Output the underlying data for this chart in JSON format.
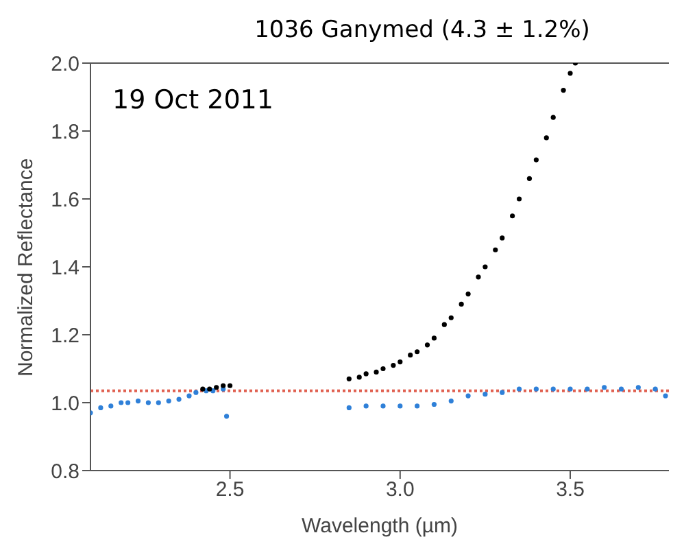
{
  "chart_data": {
    "type": "scatter",
    "title": "1036 Ganymed (4.3 ± 1.2%)",
    "xlabel": "Wavelength (µm)",
    "ylabel": "Normalized Reflectance",
    "annotations": [
      "19 Oct 2011"
    ],
    "series": [
      {
        "color": "#2f80d8",
        "x": [
          2.09,
          2.12,
          2.15,
          2.18,
          2.2,
          2.23,
          2.26,
          2.29,
          2.32,
          2.35,
          2.38,
          2.4,
          2.43,
          2.45,
          2.48,
          2.49,
          2.85,
          2.9,
          2.95,
          3.0,
          3.05,
          3.1,
          3.15,
          3.2,
          3.25,
          3.3,
          3.35,
          3.4,
          3.45,
          3.5,
          3.55,
          3.6,
          3.65,
          3.7,
          3.75,
          3.78
        ],
        "values": [
          0.97,
          0.985,
          0.99,
          1.0,
          1.0,
          1.005,
          1.0,
          1.0,
          1.005,
          1.01,
          1.02,
          1.03,
          1.035,
          1.035,
          1.04,
          0.96,
          0.985,
          0.99,
          0.99,
          0.99,
          0.99,
          0.995,
          1.005,
          1.02,
          1.025,
          1.03,
          1.04,
          1.04,
          1.04,
          1.04,
          1.04,
          1.045,
          1.04,
          1.045,
          1.04,
          1.02
        ]
      },
      {
        "color": "#000000",
        "x": [
          2.42,
          2.44,
          2.46,
          2.48,
          2.5,
          2.85,
          2.88,
          2.9,
          2.93,
          2.95,
          2.98,
          3.0,
          3.03,
          3.05,
          3.08,
          3.1,
          3.13,
          3.15,
          3.18,
          3.2,
          3.23,
          3.25,
          3.28,
          3.3,
          3.33,
          3.35,
          3.38,
          3.4,
          3.43,
          3.45,
          3.48,
          3.5,
          3.515
        ],
        "values": [
          1.04,
          1.04,
          1.045,
          1.05,
          1.05,
          1.07,
          1.075,
          1.085,
          1.09,
          1.1,
          1.11,
          1.12,
          1.14,
          1.15,
          1.17,
          1.19,
          1.23,
          1.25,
          1.29,
          1.32,
          1.37,
          1.4,
          1.45,
          1.485,
          1.55,
          1.6,
          1.66,
          1.715,
          1.78,
          1.84,
          1.92,
          1.97,
          2.0
        ]
      }
    ],
    "xlim": [
      2.09,
      3.79
    ],
    "xticks": [
      2.5,
      {
        "value": 3,
        "label": "3.0"
      },
      3.5
    ],
    "ylim": [
      0.8,
      2.0
    ],
    "yticks": [
      0.8,
      {
        "value": 1,
        "label": "1.0"
      },
      1.2,
      1.4,
      1.6,
      1.8,
      {
        "value": 2,
        "label": "2.0"
      }
    ],
    "ref_lines": [
      {
        "axis": "y",
        "value": 1.035,
        "color": "#e06050",
        "line_style": "dotted"
      }
    ],
    "marker": "circle"
  }
}
